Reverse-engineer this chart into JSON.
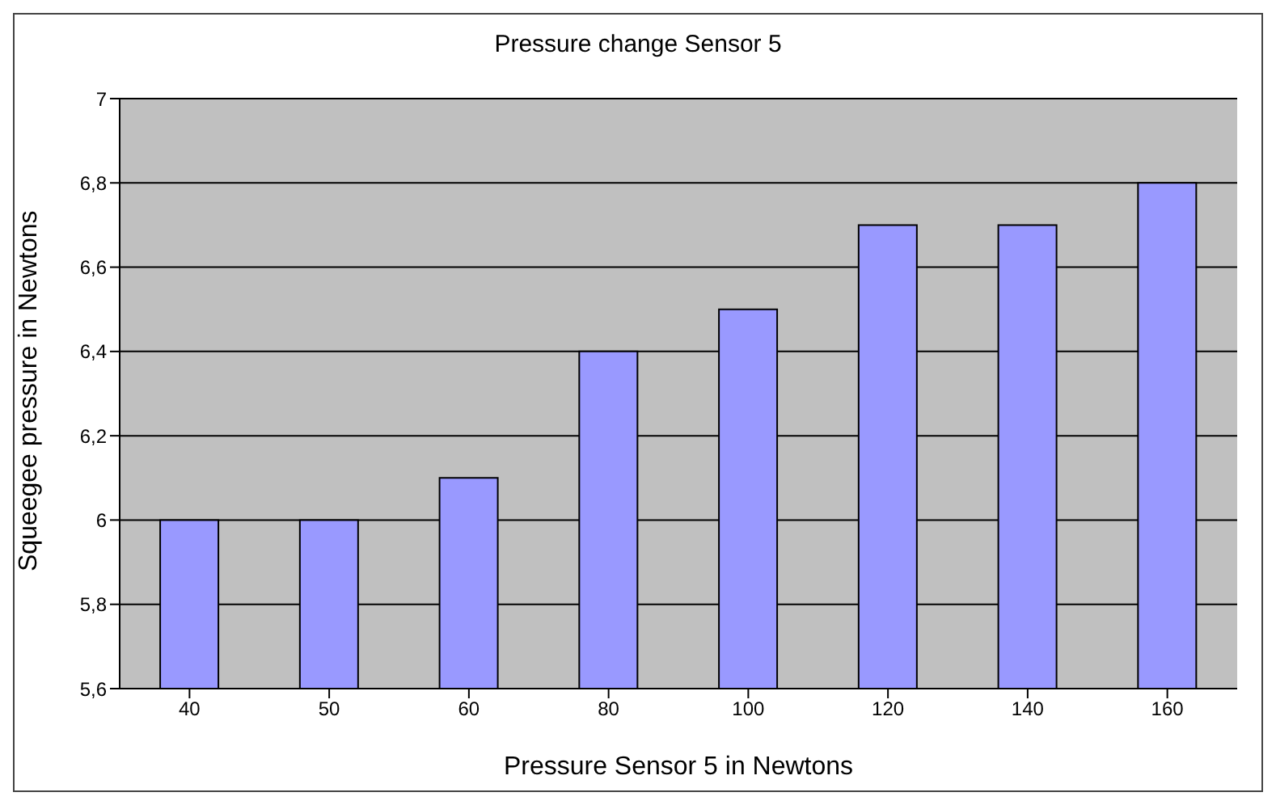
{
  "chart_data": {
    "type": "bar",
    "title": "Pressure change Sensor 5",
    "xlabel": "Pressure Sensor 5 in Newtons",
    "ylabel": "Squeegee pressure in Newtons",
    "categories": [
      "40",
      "50",
      "60",
      "80",
      "100",
      "120",
      "140",
      "160"
    ],
    "values": [
      6,
      6,
      6.1,
      6.4,
      6.5,
      6.7,
      6.7,
      6.8
    ],
    "color": "#9999ff",
    "ylim": [
      5.6,
      7
    ],
    "yticks": [
      {
        "value": 5.6,
        "label": "5,6"
      },
      {
        "value": 5.8,
        "label": "5,8"
      },
      {
        "value": 6,
        "label": "6"
      },
      {
        "value": 6.2,
        "label": "6,2"
      },
      {
        "value": 6.4,
        "label": "6,4"
      },
      {
        "value": 6.6,
        "label": "6,6"
      },
      {
        "value": 6.8,
        "label": "6,8"
      },
      {
        "value": 7,
        "label": "7"
      }
    ],
    "grid": "y",
    "legend": false
  }
}
